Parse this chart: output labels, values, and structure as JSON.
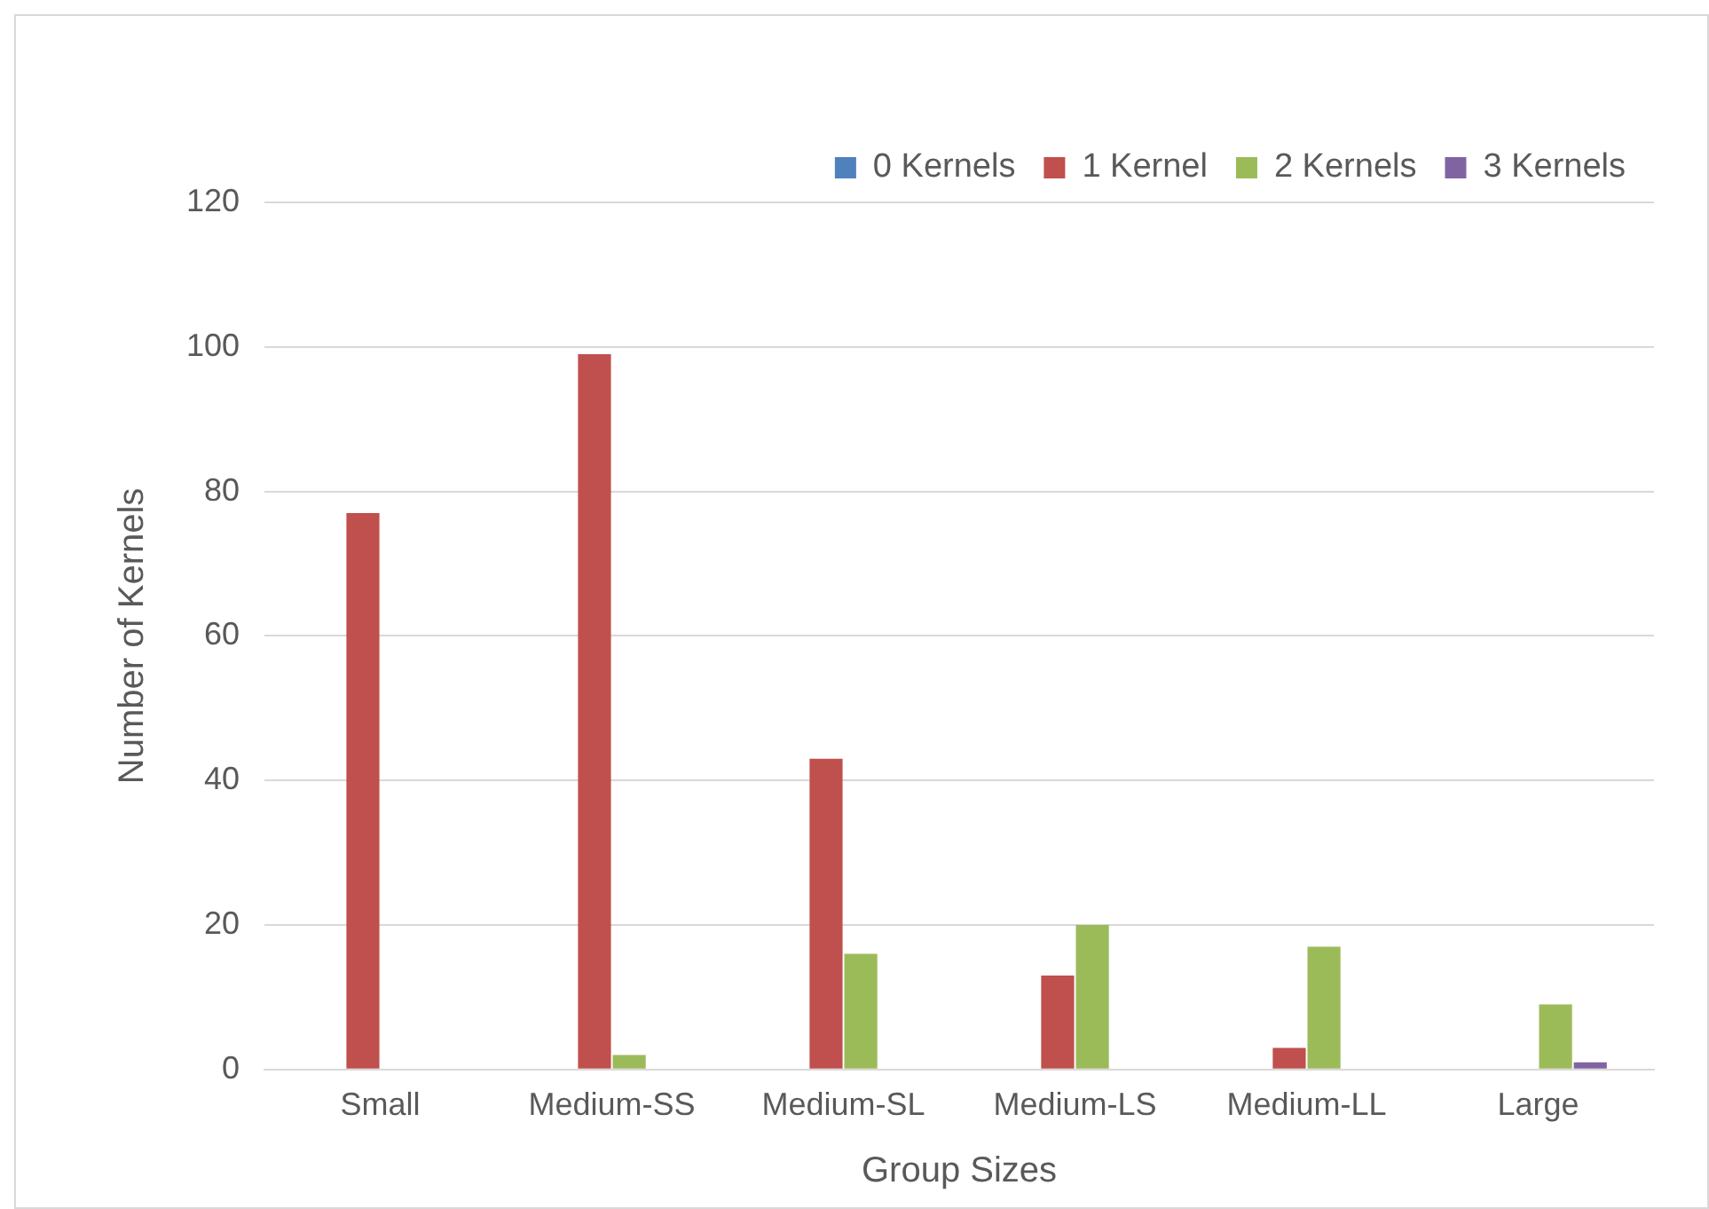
{
  "chart_data": {
    "type": "bar",
    "xlabel": "Group Sizes",
    "ylabel": "Number of Kernels",
    "categories": [
      "Small",
      "Medium-SS",
      "Medium-SL",
      "Medium-LS",
      "Medium-LL",
      "Large"
    ],
    "series": [
      {
        "name": "0 Kernels",
        "color": "#4f81bd",
        "values": [
          0,
          0,
          0,
          0,
          0,
          0
        ]
      },
      {
        "name": "1 Kernel",
        "color": "#c0504d",
        "values": [
          77,
          99,
          43,
          13,
          3,
          0
        ]
      },
      {
        "name": "2 Kernels",
        "color": "#9bbb59",
        "values": [
          0,
          2,
          16,
          20,
          17,
          9
        ]
      },
      {
        "name": "3 Kernels",
        "color": "#8064a2",
        "values": [
          0,
          0,
          0,
          0,
          0,
          1
        ]
      }
    ],
    "ylim": [
      0,
      120
    ],
    "yticks": [
      0,
      20,
      40,
      60,
      80,
      100,
      120
    ],
    "grid": "y",
    "legend": "top right"
  }
}
